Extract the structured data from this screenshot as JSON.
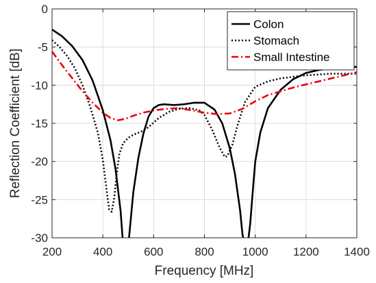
{
  "chart_data": {
    "type": "line",
    "title": "",
    "xlabel": "Frequency [MHz]",
    "ylabel": "Reflection Coefficient [dB]",
    "xlim": [
      200,
      1400
    ],
    "ylim": [
      -30,
      0
    ],
    "xticks": [
      200,
      400,
      600,
      800,
      1000,
      1200,
      1400
    ],
    "yticks": [
      -30,
      -25,
      -20,
      -15,
      -10,
      -5,
      0
    ],
    "xtick_labels": [
      "200",
      "400",
      "600",
      "800",
      "1000",
      "1200",
      "1400"
    ],
    "ytick_labels": [
      "-30",
      "-25",
      "-20",
      "-15",
      "-10",
      "-5",
      "0"
    ],
    "grid": true,
    "legend_position": "top-right",
    "series": [
      {
        "name": "Colon",
        "color": "#000000",
        "style": "solid",
        "x": [
          200,
          240,
          280,
          320,
          360,
          400,
          430,
          450,
          470,
          480,
          490,
          500,
          510,
          520,
          540,
          560,
          580,
          600,
          620,
          640,
          680,
          720,
          760,
          800,
          840,
          870,
          900,
          920,
          940,
          950,
          960,
          970,
          980,
          990,
          1000,
          1020,
          1050,
          1100,
          1150,
          1200,
          1250,
          1300,
          1350,
          1400
        ],
        "y": [
          -2.7,
          -3.6,
          -4.9,
          -6.7,
          -9.4,
          -13.3,
          -17.2,
          -21.0,
          -26.5,
          -31.0,
          -31.0,
          -31.0,
          -27.5,
          -24.0,
          -19.5,
          -16.3,
          -14.1,
          -13.0,
          -12.6,
          -12.5,
          -12.6,
          -12.5,
          -12.3,
          -12.3,
          -13.2,
          -15.0,
          -18.3,
          -21.6,
          -26.3,
          -29.6,
          -31.0,
          -31.0,
          -28.2,
          -24.0,
          -20.0,
          -16.2,
          -13.0,
          -10.6,
          -9.2,
          -8.4,
          -8.0,
          -7.8,
          -7.7,
          -7.6
        ]
      },
      {
        "name": "Stomach",
        "color": "#000000",
        "style": "dotted",
        "x": [
          200,
          230,
          260,
          290,
          320,
          350,
          380,
          400,
          415,
          425,
          435,
          445,
          455,
          465,
          480,
          500,
          520,
          550,
          580,
          620,
          660,
          700,
          740,
          780,
          800,
          830,
          860,
          880,
          890,
          910,
          930,
          960,
          1000,
          1050,
          1100,
          1150,
          1200,
          1250,
          1300,
          1350,
          1400
        ],
        "y": [
          -4.1,
          -5.0,
          -6.2,
          -7.8,
          -10.0,
          -12.8,
          -16.2,
          -19.8,
          -23.8,
          -26.3,
          -26.6,
          -24.7,
          -21.5,
          -19.0,
          -17.6,
          -16.9,
          -16.5,
          -16.1,
          -15.5,
          -14.3,
          -13.5,
          -13.1,
          -13.0,
          -13.3,
          -13.9,
          -15.8,
          -18.2,
          -19.4,
          -19.3,
          -17.8,
          -15.3,
          -12.2,
          -10.2,
          -9.5,
          -9.1,
          -8.9,
          -8.7,
          -8.6,
          -8.5,
          -8.5,
          -8.5
        ]
      },
      {
        "name": "Small Intestine",
        "color": "#e8000b",
        "style": "dashdot",
        "x": [
          200,
          240,
          280,
          320,
          360,
          400,
          430,
          460,
          490,
          520,
          560,
          600,
          650,
          700,
          750,
          800,
          850,
          900,
          950,
          1000,
          1050,
          1100,
          1150,
          1200,
          1250,
          1300,
          1350,
          1400
        ],
        "y": [
          -5.6,
          -7.4,
          -9.1,
          -10.8,
          -12.3,
          -13.6,
          -14.3,
          -14.6,
          -14.4,
          -14.0,
          -13.6,
          -13.3,
          -13.1,
          -13.0,
          -13.3,
          -13.6,
          -13.8,
          -13.7,
          -13.1,
          -12.1,
          -11.3,
          -10.8,
          -10.3,
          -9.9,
          -9.5,
          -9.1,
          -8.7,
          -8.3
        ]
      }
    ]
  }
}
